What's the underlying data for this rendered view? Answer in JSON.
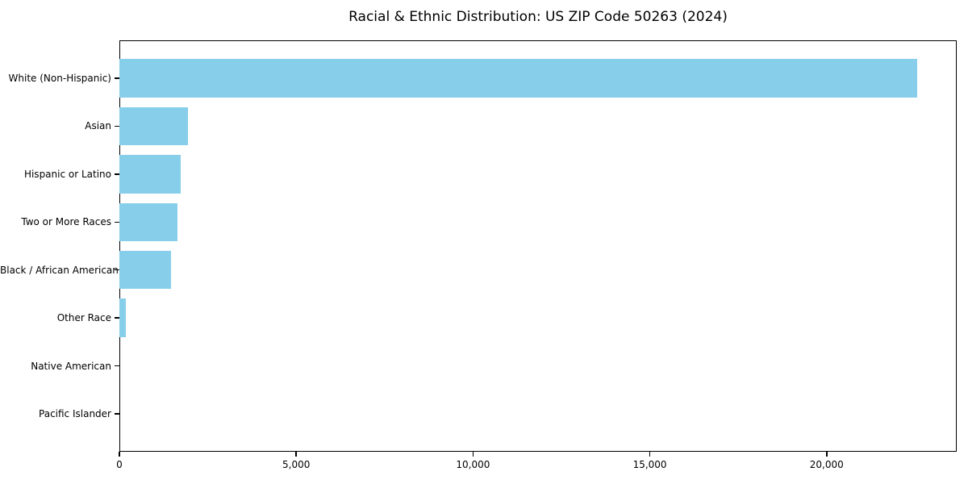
{
  "title": "Racial & Ethnic Distribution: US ZIP Code 50263 (2024)",
  "chart_data": {
    "type": "bar",
    "orientation": "horizontal",
    "title": "Racial & Ethnic Distribution: US ZIP Code 50263 (2024)",
    "xlabel": "",
    "ylabel": "",
    "categories": [
      "White (Non-Hispanic)",
      "Asian",
      "Hispanic or Latino",
      "Two or More Races",
      "Black / African American",
      "Other Race",
      "Native American",
      "Pacific Islander"
    ],
    "values": [
      22550,
      1930,
      1730,
      1640,
      1450,
      180,
      0,
      0
    ],
    "xlim": [
      0,
      23678
    ],
    "x_ticks": [
      0,
      5000,
      10000,
      15000,
      20000
    ],
    "x_tick_labels": [
      "0",
      "5,000",
      "10,000",
      "15,000",
      "20,000"
    ],
    "bar_color": "#87CEEB",
    "grid": false,
    "legend": null
  }
}
